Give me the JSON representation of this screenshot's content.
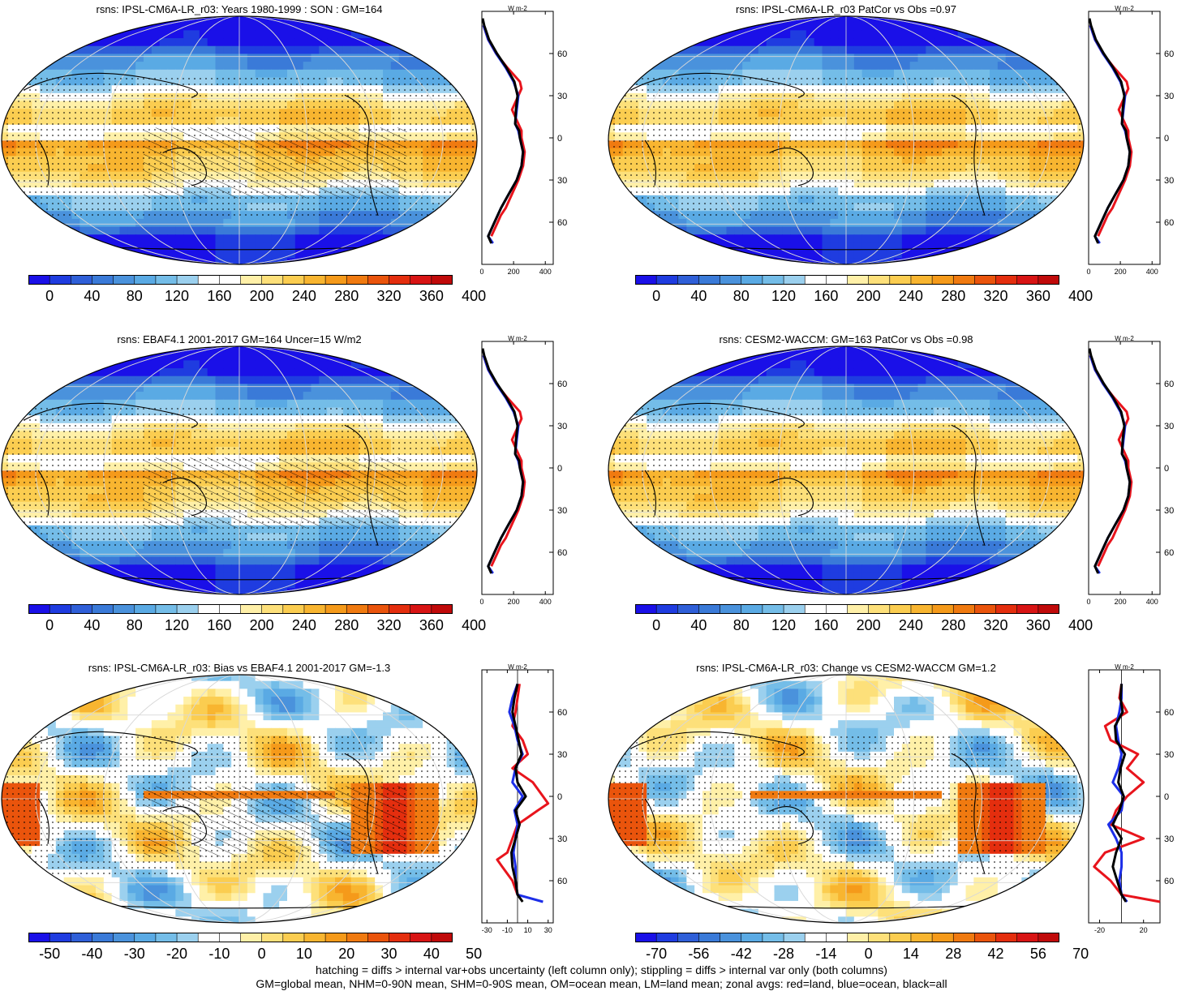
{
  "panels": [
    {
      "title": "rsns: IPSL-CM6A-LR_r03: Years 1980-1999 : SON : GM=164",
      "kind": "abs",
      "scale": "abs",
      "hatch": true
    },
    {
      "title": "rsns: IPSL-CM6A-LR_r03 PatCor vs Obs =0.97",
      "kind": "abs",
      "scale": "abs",
      "hatch": false
    },
    {
      "title": "rsns: EBAF4.1 2001-2017 GM=164 Uncer=15 W/m2",
      "kind": "abs",
      "scale": "abs",
      "hatch": true
    },
    {
      "title": "rsns: CESM2-WACCM: GM=163 PatCor vs Obs =0.98",
      "kind": "abs",
      "scale": "abs",
      "hatch": false
    },
    {
      "title": "rsns: IPSL-CM6A-LR_r03: Bias vs EBAF4.1 2001-2017  GM=-1.3",
      "kind": "diff",
      "scale": "diff50",
      "hatch": true
    },
    {
      "title": "rsns: IPSL-CM6A-LR_r03: Change vs CESM2-WACCM GM=1.2",
      "kind": "diff",
      "scale": "diff70",
      "hatch": false
    }
  ],
  "colorbars": {
    "abs": {
      "labels": [
        "0",
        "40",
        "80",
        "120",
        "160",
        "200",
        "240",
        "280",
        "320",
        "360",
        "400"
      ]
    },
    "diff50": {
      "labels": [
        "-50",
        "-40",
        "-30",
        "-20",
        "-10",
        "0",
        "10",
        "20",
        "30",
        "40",
        "50"
      ]
    },
    "diff70": {
      "labels": [
        "-70",
        "-56",
        "-42",
        "-28",
        "-14",
        "0",
        "14",
        "28",
        "42",
        "56",
        "70"
      ]
    }
  },
  "chart_data": [
    {
      "type": "line",
      "panel": "zonal-abs",
      "units": "W m-2",
      "ytick_labels": [
        "60N",
        "30N",
        "0",
        "30S",
        "60S"
      ],
      "xtick_labels": [
        "0",
        "200",
        "400"
      ],
      "xlim": [
        0,
        450
      ],
      "ylim": [
        -90,
        90
      ],
      "series": [
        {
          "name": "red",
          "color": "#e8141c",
          "lat": [
            80,
            70,
            60,
            50,
            40,
            35,
            30,
            20,
            10,
            5,
            0,
            -10,
            -20,
            -30,
            -40,
            -50,
            -55,
            -60,
            -70
          ],
          "values": [
            10,
            40,
            90,
            160,
            240,
            250,
            230,
            190,
            230,
            250,
            250,
            270,
            260,
            230,
            190,
            150,
            120,
            100,
            60
          ]
        },
        {
          "name": "blue",
          "color": "#1c2ee8",
          "lat": [
            80,
            70,
            60,
            50,
            40,
            30,
            20,
            10,
            5,
            0,
            -10,
            -20,
            -30,
            -40,
            -50,
            -60,
            -70,
            -75
          ],
          "values": [
            10,
            40,
            90,
            150,
            200,
            230,
            220,
            210,
            230,
            240,
            260,
            250,
            220,
            170,
            120,
            80,
            40,
            70
          ]
        },
        {
          "name": "black",
          "color": "#000000",
          "lat": [
            85,
            80,
            70,
            60,
            50,
            40,
            30,
            20,
            10,
            5,
            0,
            -10,
            -20,
            -30,
            -40,
            -50,
            -60,
            -70,
            -75
          ],
          "values": [
            5,
            15,
            45,
            95,
            155,
            205,
            225,
            215,
            210,
            235,
            240,
            260,
            250,
            220,
            170,
            120,
            80,
            40,
            60
          ]
        }
      ]
    },
    {
      "type": "line",
      "panel": "zonal-diff-left",
      "units": "W m-2",
      "ytick_labels": [
        "60N",
        "30N",
        "0",
        "30S",
        "60S"
      ],
      "xtick_labels": [
        "-30",
        "-10",
        "10",
        "30"
      ],
      "xlim": [
        -35,
        35
      ],
      "ylim": [
        -90,
        90
      ],
      "series": [
        {
          "name": "red",
          "color": "#e8141c",
          "lat": [
            80,
            70,
            60,
            50,
            40,
            30,
            20,
            10,
            0,
            -5,
            -10,
            -15,
            -20,
            -30,
            -40,
            -45,
            -50,
            -60,
            -70
          ],
          "values": [
            2,
            0,
            -2,
            -5,
            5,
            10,
            -5,
            15,
            25,
            30,
            20,
            10,
            0,
            -5,
            -10,
            -20,
            -15,
            -5,
            0
          ]
        },
        {
          "name": "blue",
          "color": "#1c2ee8",
          "lat": [
            80,
            70,
            60,
            50,
            40,
            30,
            20,
            10,
            0,
            -10,
            -20,
            -30,
            -40,
            -50,
            -60,
            -70,
            -75
          ],
          "values": [
            0,
            -5,
            -8,
            -3,
            0,
            5,
            -2,
            -5,
            5,
            -3,
            0,
            -2,
            -4,
            -2,
            -2,
            0,
            25
          ]
        },
        {
          "name": "black",
          "color": "#000000",
          "lat": [
            80,
            70,
            60,
            50,
            40,
            30,
            20,
            10,
            0,
            -10,
            -20,
            -30,
            -40,
            -50,
            -60,
            -70,
            -75
          ],
          "values": [
            0,
            -3,
            -5,
            -2,
            1,
            4,
            -2,
            0,
            8,
            -2,
            2,
            -2,
            -6,
            -5,
            -2,
            0,
            5
          ]
        }
      ]
    },
    {
      "type": "line",
      "panel": "zonal-diff-right",
      "units": "W m-2",
      "ytick_labels": [
        "60N",
        "30N",
        "0",
        "30S",
        "60S"
      ],
      "xtick_labels": [
        "-20",
        "20"
      ],
      "xlim": [
        -30,
        35
      ],
      "ylim": [
        -90,
        90
      ],
      "series": [
        {
          "name": "red",
          "color": "#e8141c",
          "lat": [
            80,
            70,
            60,
            50,
            40,
            30,
            20,
            10,
            0,
            -10,
            -20,
            -30,
            -40,
            -50,
            -60,
            -70,
            -75
          ],
          "values": [
            0,
            -2,
            5,
            -15,
            -10,
            15,
            5,
            20,
            5,
            -5,
            -10,
            20,
            -15,
            -25,
            -10,
            0,
            35
          ]
        },
        {
          "name": "blue",
          "color": "#1c2ee8",
          "lat": [
            80,
            70,
            60,
            50,
            40,
            30,
            20,
            10,
            0,
            -10,
            -20,
            -30,
            -40,
            -50,
            -60,
            -70,
            -75
          ],
          "values": [
            0,
            0,
            -2,
            -5,
            -3,
            0,
            -3,
            -8,
            2,
            0,
            -12,
            -5,
            0,
            0,
            -2,
            0,
            5
          ]
        },
        {
          "name": "black",
          "color": "#000000",
          "lat": [
            80,
            70,
            60,
            50,
            40,
            30,
            20,
            10,
            0,
            -10,
            -20,
            -30,
            -40,
            -50,
            -60,
            -70,
            -75
          ],
          "values": [
            0,
            -1,
            1,
            -6,
            -5,
            3,
            -1,
            -3,
            2,
            -2,
            -8,
            0,
            -5,
            -8,
            -4,
            0,
            4
          ]
        }
      ]
    }
  ],
  "footer": {
    "line1": "hatching = diffs > internal var+obs uncertainty (left column only); stippling = diffs > internal var only (both columns)",
    "line2": "GM=global mean, NHM=0-90N mean, SHM=0-90S mean, OM=ocean mean, LM=land mean; zonal avgs: red=land, blue=ocean, black=all"
  },
  "colors": {
    "ramp": [
      "#1a10e8",
      "#1f3ce0",
      "#2f5fd8",
      "#3a7ad8",
      "#4a92dc",
      "#5aaae4",
      "#74bde8",
      "#9bd0ee",
      "#ffffff",
      "#ffffff",
      "#fff0a8",
      "#fde07a",
      "#fbcd50",
      "#f8b530",
      "#f59a1a",
      "#f07a10",
      "#ea540c",
      "#e42e0e",
      "#d81414",
      "#c00a0a"
    ],
    "land": "#e8141c",
    "ocean": "#1c2ee8",
    "all": "#000000"
  }
}
